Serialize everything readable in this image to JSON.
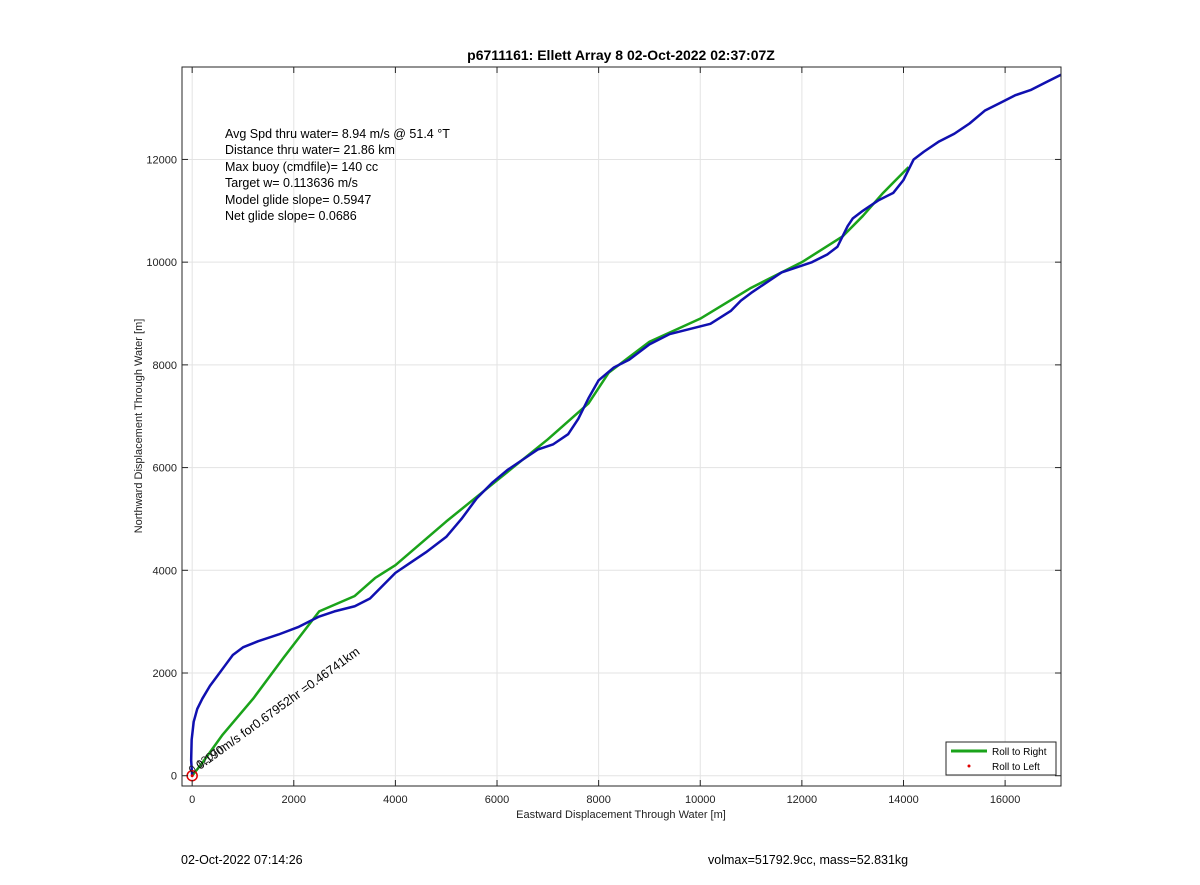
{
  "footer": {
    "date": "02-Oct-2022 07:14:26",
    "vol_mass": "volmax=51792.9cc, mass=52.831kg"
  },
  "chart_data": {
    "type": "line",
    "title": "p6711161: Ellett Array 8 02-Oct-2022 02:37:07Z",
    "xlabel": "Eastward Displacement Through Water [m]",
    "ylabel": "Northward Displacement Through Water [m]",
    "xlim": [
      -200,
      17100
    ],
    "ylim": [
      -200,
      13800
    ],
    "xticks": [
      0,
      2000,
      4000,
      6000,
      8000,
      10000,
      12000,
      14000,
      16000
    ],
    "yticks": [
      0,
      2000,
      4000,
      6000,
      8000,
      10000,
      12000
    ],
    "grid": true,
    "legend_location": "bottom-right",
    "stats": [
      "Avg Spd thru water=  8.94 m/s @  51.4 °T",
      "Distance thru water= 21.86 km",
      "Max buoy (cmdfile)= 140 cc",
      "Target w= 0.113636 m/s",
      "Model glide slope= 0.5947",
      "Net glide slope= 0.0686"
    ],
    "annotation": "0.190m/s for0.67952hr =0.46741km",
    "annotation_overlap": "0.1207m",
    "series": [
      {
        "name": "Roll to Right",
        "color": "#1aa31a",
        "x": [
          0,
          200,
          600,
          1200,
          1800,
          2500,
          3200,
          3600,
          4000,
          5000,
          6000,
          7000,
          7800,
          8200,
          8600,
          9000,
          10000,
          11000,
          12000,
          12800,
          13200,
          13600,
          14100
        ],
        "y": [
          0,
          250,
          800,
          1500,
          2300,
          3200,
          3500,
          3850,
          4100,
          4950,
          5750,
          6550,
          7250,
          7850,
          8150,
          8450,
          8900,
          9500,
          10000,
          10500,
          10900,
          11350,
          11850
        ]
      },
      {
        "name": "Roll to Left",
        "color": "#e00000",
        "x": [
          0
        ],
        "y": [
          0
        ]
      },
      {
        "name": "",
        "color": "#1010b0",
        "x": [
          0,
          -20,
          -10,
          30,
          100,
          200,
          350,
          500,
          650,
          800,
          1000,
          1300,
          1700,
          2100,
          2500,
          2800,
          3200,
          3500,
          3700,
          4000,
          4300,
          4600,
          5000,
          5300,
          5600,
          5900,
          6200,
          6500,
          6800,
          7100,
          7400,
          7600,
          7800,
          8000,
          8300,
          8600,
          9000,
          9400,
          9800,
          10200,
          10600,
          10800,
          11000,
          11300,
          11600,
          11900,
          12200,
          12500,
          12700,
          12800,
          12900,
          13000,
          13200,
          13500,
          13800,
          14000,
          14100,
          14200,
          14400,
          14700,
          15000,
          15300,
          15600,
          15900,
          16200,
          16500,
          16800,
          17100
        ],
        "y": [
          0,
          300,
          700,
          1050,
          1300,
          1500,
          1750,
          1950,
          2150,
          2350,
          2500,
          2620,
          2750,
          2900,
          3100,
          3200,
          3300,
          3450,
          3650,
          3950,
          4150,
          4350,
          4650,
          5000,
          5400,
          5700,
          5950,
          6150,
          6350,
          6450,
          6650,
          6950,
          7350,
          7700,
          7950,
          8100,
          8400,
          8600,
          8700,
          8800,
          9050,
          9250,
          9400,
          9600,
          9800,
          9900,
          10000,
          10150,
          10300,
          10500,
          10700,
          10850,
          11000,
          11200,
          11350,
          11600,
          11800,
          12000,
          12150,
          12350,
          12500,
          12700,
          12950,
          13100,
          13250,
          13350,
          13500,
          13650
        ]
      }
    ]
  }
}
